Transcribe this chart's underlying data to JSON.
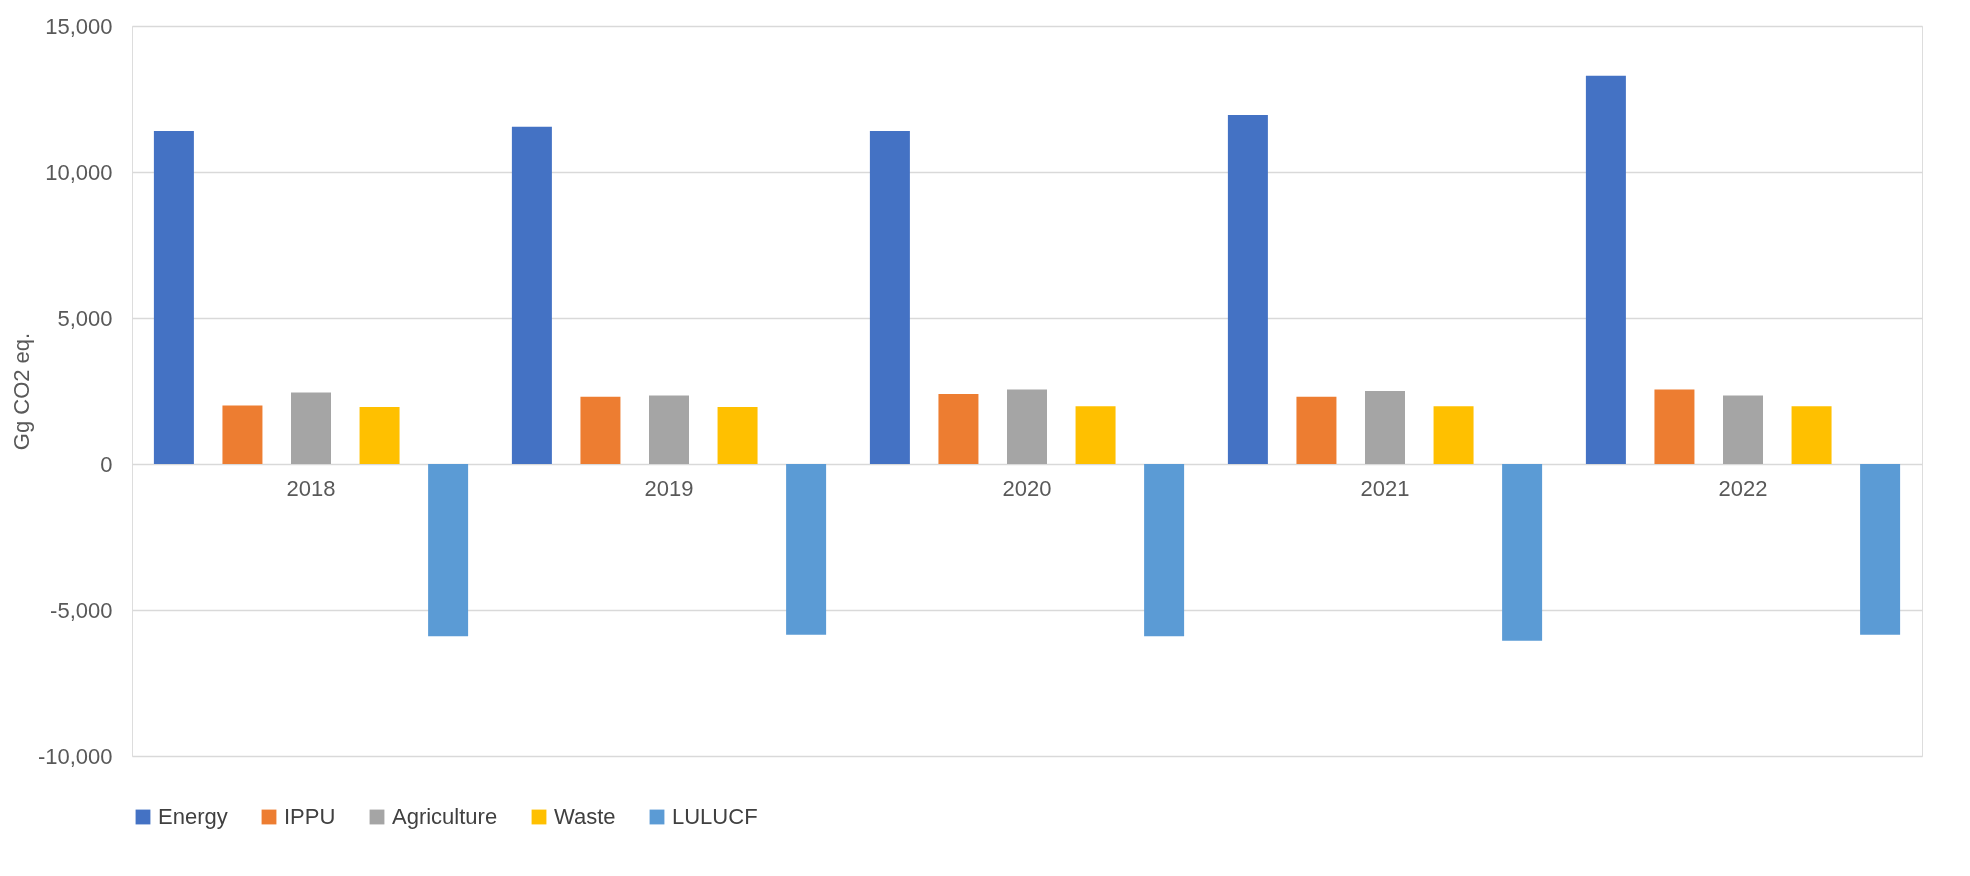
{
  "chart_data": {
    "type": "bar",
    "ylabel": "Gg CO2 eq.",
    "categories": [
      "2018",
      "2019",
      "2020",
      "2021",
      "2022"
    ],
    "series": [
      {
        "name": "Energy",
        "color": "#4472c4",
        "values": [
          11400,
          11550,
          11400,
          11950,
          13300
        ]
      },
      {
        "name": "IPPU",
        "color": "#ed7d31",
        "values": [
          2000,
          2300,
          2400,
          2300,
          2550
        ]
      },
      {
        "name": "Agriculture",
        "color": "#a5a5a5",
        "values": [
          2450,
          2350,
          2550,
          2500,
          2350
        ]
      },
      {
        "name": "Waste",
        "color": "#ffc000",
        "values": [
          1950,
          1950,
          1980,
          1980,
          1980
        ]
      },
      {
        "name": "LULUCF",
        "color": "#5b9bd5",
        "values": [
          -5900,
          -5850,
          -5900,
          -6050,
          -5850
        ]
      }
    ],
    "ylim": [
      -10000,
      15000
    ],
    "yticks": [
      {
        "value": -10000,
        "label": "-10,000"
      },
      {
        "value": -5000,
        "label": "-5,000"
      },
      0,
      {
        "value": 5000,
        "label": "5,000"
      },
      {
        "value": 10000,
        "label": "10,000"
      },
      {
        "value": 15000,
        "label": "15,000"
      }
    ],
    "grid": "y",
    "legend": "bottom"
  }
}
